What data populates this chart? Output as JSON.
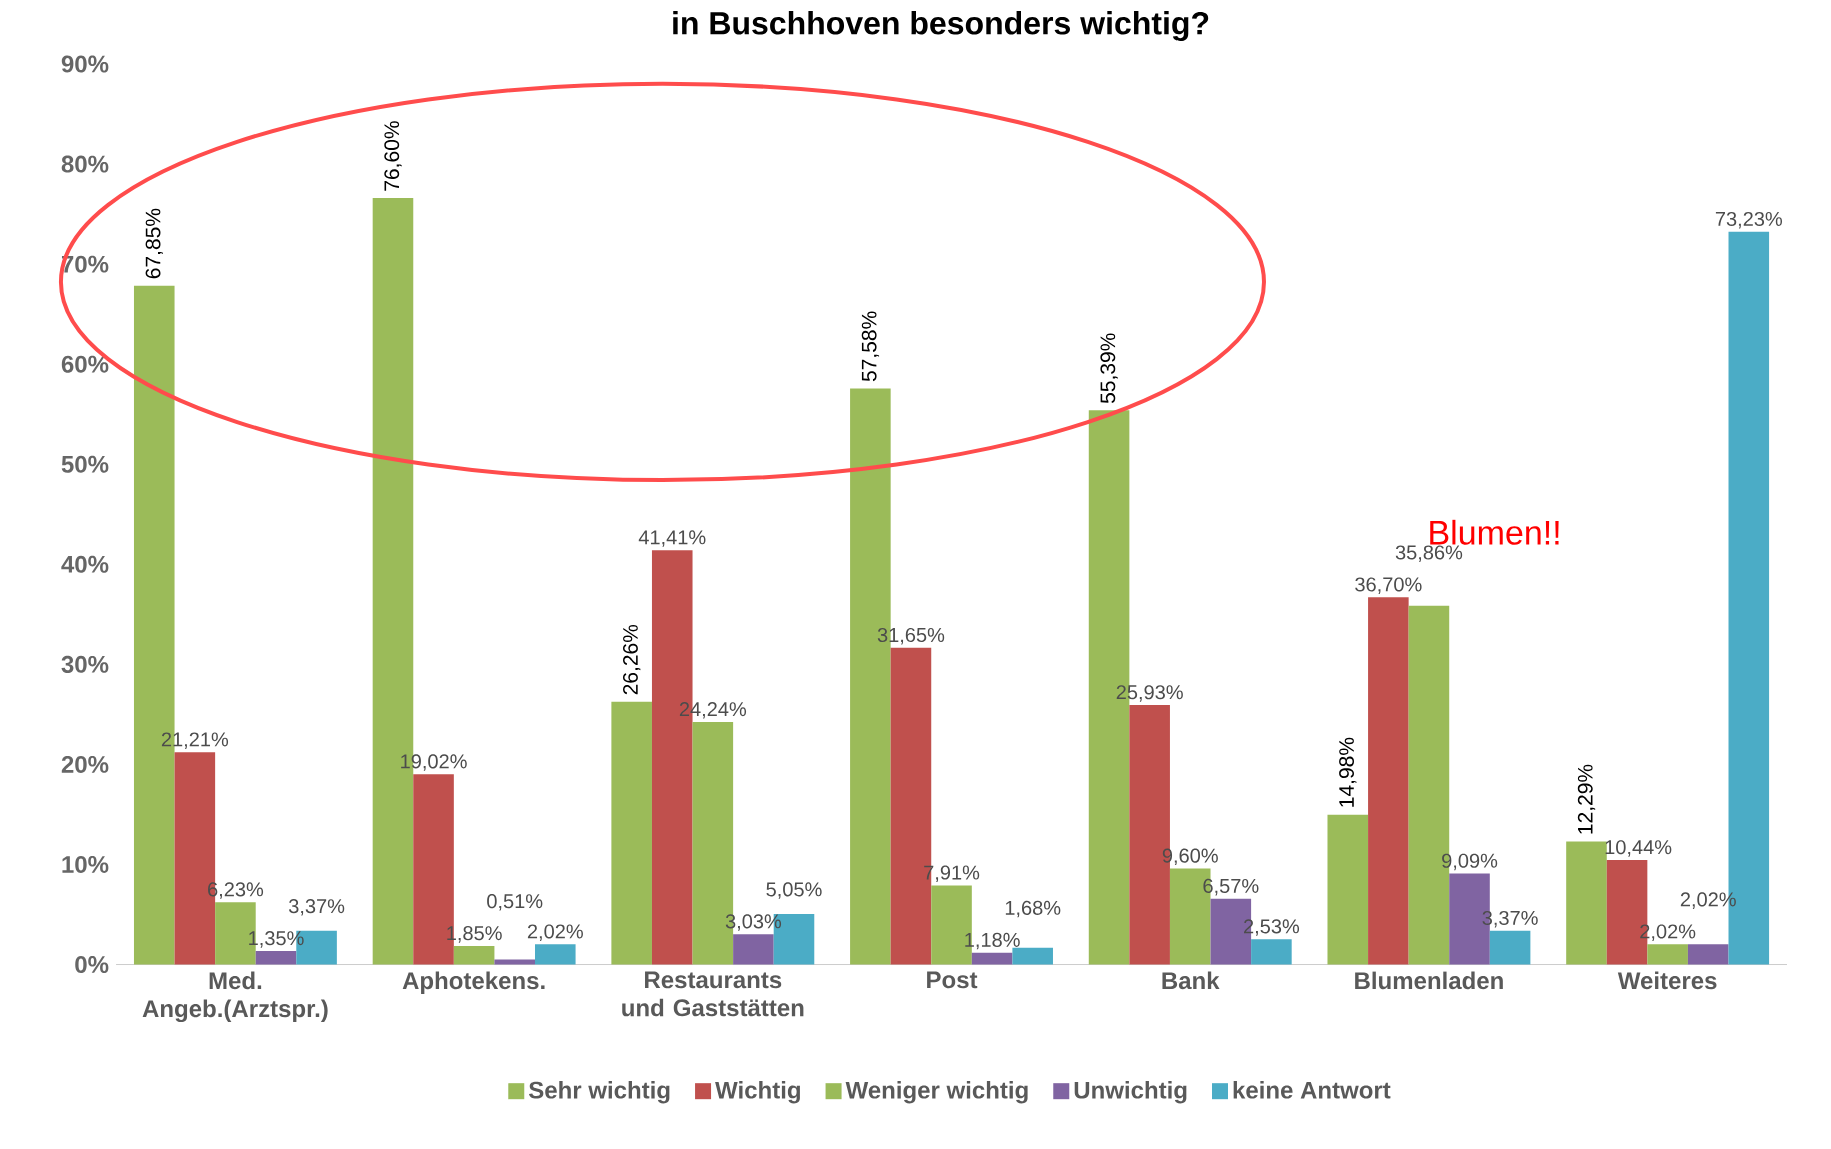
{
  "chart_data": {
    "type": "bar",
    "title": "in Buschhoven besonders wichtig?",
    "categories": [
      "Med. Angeb.(Arztspr.)",
      "Aphotekens.",
      "Restaurants und Gaststätten",
      "Post",
      "Bank",
      "Blumenladen",
      "Weiteres"
    ],
    "series": [
      {
        "name": "Sehr wichtig",
        "color": "#9bbb59",
        "values": [
          67.85,
          76.6,
          26.26,
          57.58,
          55.39,
          14.98,
          12.29
        ],
        "value_labels": [
          "67,85%",
          "76,60%",
          "26,26%",
          "57,58%",
          "55,39%",
          "14,98%",
          "12,29%"
        ]
      },
      {
        "name": "Wichtig",
        "color": "#c0504d",
        "values": [
          21.21,
          19.02,
          41.41,
          31.65,
          25.93,
          36.7,
          10.44
        ],
        "value_labels": [
          "21,21%",
          "19,02%",
          "41,41%",
          "31,65%",
          "25,93%",
          "36,70%",
          "10,44%"
        ]
      },
      {
        "name": "Weniger wichtig",
        "color": "#9bbb59",
        "values": [
          6.23,
          1.85,
          24.24,
          7.91,
          9.6,
          35.86,
          2.02
        ],
        "value_labels": [
          "6,23%",
          "1,85%",
          "24,24%",
          "7,91%",
          "9,60%",
          "35,86%",
          "2,02%"
        ]
      },
      {
        "name": "Unwichtig",
        "color": "#8064a2",
        "values": [
          1.35,
          0.51,
          3.03,
          1.18,
          6.57,
          9.09,
          2.02
        ],
        "value_labels": [
          "1,35%",
          "0,51%",
          "3,03%",
          "1,18%",
          "6,57%",
          "9,09%",
          "2,02%"
        ]
      },
      {
        "name": "keine Antwort",
        "color": "#4bacc6",
        "values": [
          3.37,
          2.02,
          5.05,
          1.68,
          2.53,
          3.37,
          73.23
        ],
        "value_labels": [
          "3,37%",
          "2,02%",
          "5,05%",
          "1,68%",
          "2,53%",
          "3,37%",
          "73,23%"
        ]
      }
    ],
    "ylim": [
      0,
      90
    ],
    "yticks": [
      {
        "value": 0,
        "label": "0%"
      },
      {
        "value": 10,
        "label": "10%"
      },
      {
        "value": 20,
        "label": "20%"
      },
      {
        "value": 30,
        "label": "30%"
      },
      {
        "value": 40,
        "label": "40%"
      },
      {
        "value": 50,
        "label": "50%"
      },
      {
        "value": 60,
        "label": "60%"
      },
      {
        "value": 70,
        "label": "70%"
      },
      {
        "value": 80,
        "label": "80%"
      },
      {
        "value": 90,
        "label": "90%"
      }
    ],
    "grid": false,
    "legend": "bottom",
    "annotations": [
      "Blumen!!"
    ]
  }
}
